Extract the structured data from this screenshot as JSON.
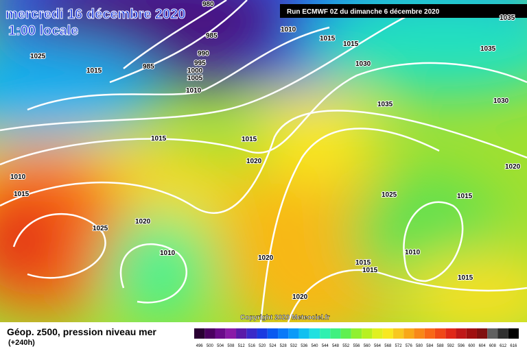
{
  "header": {
    "date_line": "mercredi 16 décembre 2020",
    "time_line": "1:00 locale",
    "run_info": "Run ECMWF 0Z du dimanche 6 décembre 2020"
  },
  "footer": {
    "title": "Géop. z500, pression niveau mer",
    "subtitle": "(+240h)",
    "copyright": "Copyright 2020 Meteociel.fr"
  },
  "isobar_labels": [
    980,
    985,
    990,
    995,
    1000,
    1005,
    1010,
    985,
    1025,
    1015,
    1010,
    1015,
    1015,
    1030,
    1035,
    1035,
    1035,
    1030,
    1015,
    1015,
    1020,
    1020,
    1010,
    1015,
    1025,
    1015,
    1025,
    1020,
    1010,
    1010,
    1020,
    1015,
    1015,
    1015,
    1020
  ],
  "color_scale": {
    "labels": [
      496,
      500,
      504,
      508,
      512,
      516,
      520,
      524,
      528,
      532,
      536,
      540,
      544,
      548,
      552,
      556,
      560,
      564,
      568,
      572,
      576,
      580,
      584,
      588,
      592,
      596,
      600,
      604,
      608,
      612,
      616
    ],
    "colors": [
      "#2a0033",
      "#4b0060",
      "#6a0a8a",
      "#8a1aa8",
      "#5a1aa8",
      "#3a2ac8",
      "#1a3ae0",
      "#0a5af0",
      "#0a7af8",
      "#0a9af8",
      "#10c0f0",
      "#20e0e0",
      "#30f0b0",
      "#40f080",
      "#60f050",
      "#90f030",
      "#b8f020",
      "#e0f020",
      "#f8e820",
      "#f8c820",
      "#f8a818",
      "#f88818",
      "#f86818",
      "#f04818",
      "#e02818",
      "#c01818",
      "#a01010",
      "#801010",
      "#606060",
      "#303030",
      "#000000"
    ]
  }
}
